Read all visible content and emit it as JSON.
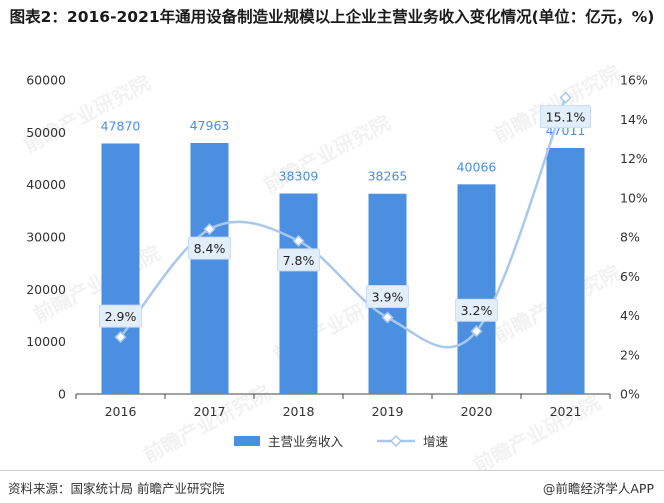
{
  "title": "图表2：2016-2021年通用设备制造业规模以上企业主营业务收入变化情况(单位：亿元，%)",
  "footer": {
    "source": "资料来源：国家统计局 前瞻产业研究院",
    "brand": "@前瞻经济学人APP"
  },
  "watermark": "前瞻产业研究院",
  "colors": {
    "bar": "#4a8fe0",
    "line": "#a9c8ee",
    "marker": "#a9c8ee",
    "label": "#4a8fe0",
    "axis": "#333333"
  },
  "chart_data": {
    "type": "bar+line",
    "categories": [
      "2016",
      "2017",
      "2018",
      "2019",
      "2020",
      "2021"
    ],
    "series": [
      {
        "name": "主营业务收入",
        "type": "bar",
        "axis": "left",
        "values": [
          47870,
          47963,
          38309,
          38265,
          40066,
          47011
        ],
        "labels": [
          "47870",
          "47963",
          "38309",
          "38265",
          "40066",
          "47011"
        ]
      },
      {
        "name": "增速",
        "type": "line",
        "axis": "right",
        "values": [
          2.9,
          8.4,
          7.8,
          3.9,
          3.2,
          15.1
        ],
        "labels": [
          "2.9%",
          "8.4%",
          "7.8%",
          "3.9%",
          "3.2%",
          "15.1%"
        ]
      }
    ],
    "y_left": {
      "min": 0,
      "max": 60000,
      "ticks": [
        "0",
        "10000",
        "20000",
        "30000",
        "40000",
        "50000",
        "60000"
      ]
    },
    "y_right": {
      "min": 0,
      "max": 16,
      "ticks": [
        "0%",
        "2%",
        "4%",
        "6%",
        "8%",
        "10%",
        "12%",
        "14%",
        "16%"
      ]
    },
    "legend_position": "bottom-center",
    "grid": false
  }
}
